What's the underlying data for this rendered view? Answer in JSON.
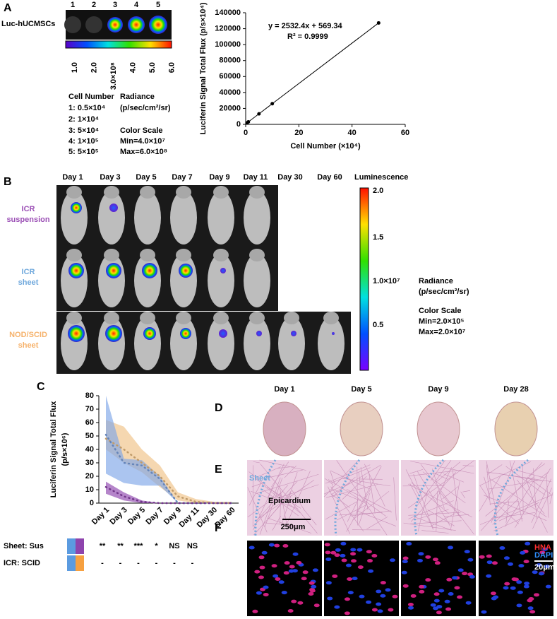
{
  "panel_labels": [
    "A",
    "B",
    "C",
    "D",
    "E",
    "F"
  ],
  "panel_a": {
    "well_numbers": [
      "1",
      "2",
      "3",
      "4",
      "5"
    ],
    "row_label": "Luc-hUCMSCs",
    "colorbar_ticks": [
      "1.0",
      "2.0",
      "3.0×10⁸",
      "4.0",
      "5.0",
      "6.0"
    ],
    "legend_left": [
      "Cell Number",
      "1: 0.5×10⁴",
      "2: 1×10⁴",
      "3: 5×10⁴",
      "4: 1×10⁵",
      "5: 5×10⁵"
    ],
    "legend_right": [
      "Radiance",
      "(p/sec/cm²/sr)",
      "Color Scale",
      "Min=4.0×10⁷",
      "Max=6.0×10⁸"
    ]
  },
  "panel_b": {
    "days": [
      "Day 1",
      "Day 3",
      "Day 5",
      "Day 7",
      "Day 9",
      "Day 11",
      "Day 30",
      "Day 60"
    ],
    "colorbar_title": "Luminescence",
    "groups": [
      {
        "lines": [
          "ICR",
          "suspension"
        ],
        "color": "#9b4fb5"
      },
      {
        "lines": [
          "ICR",
          "sheet"
        ],
        "color": "#6fa8dc"
      },
      {
        "lines": [
          "NOD/SCID",
          "sheet"
        ],
        "color": "#f6b26b"
      }
    ],
    "colorbar_ticks": [
      "2.0",
      "1.5",
      "1.0×10⁷",
      "0.5"
    ],
    "legend": [
      "Radiance",
      "(p/sec/cm²/sr)",
      "Color Scale",
      "Min=2.0×10⁵",
      "Max=2.0×10⁷"
    ]
  },
  "chart_data": [
    {
      "type": "scatter",
      "x": [
        0.5,
        1,
        5,
        10,
        50
      ],
      "values": [
        1800,
        3100,
        13200,
        25900,
        127200
      ],
      "color": "#000000",
      "xlim": [
        0,
        60
      ],
      "xticks": [
        0,
        20,
        40,
        60
      ],
      "ylim": [
        0,
        140000
      ],
      "yticks": [
        0,
        20000,
        40000,
        60000,
        80000,
        100000,
        120000,
        140000
      ],
      "xlabel": "Cell Number (×10⁴)",
      "ylabel": "Luciferin Signal Total Flux (p/s×10⁴)",
      "annotations": [
        "y = 2532.4x + 569.34",
        "R² = 0.9999"
      ]
    },
    {
      "type": "line",
      "categories": [
        "Day 1",
        "Day 3",
        "Day 5",
        "Day 7",
        "Day 9",
        "Day 11",
        "Day 30",
        "Day 60"
      ],
      "ylabel": "Luciferin Signal Total Flux",
      "ylabel_unit": "(p/s×10⁶)",
      "ylim": [
        0,
        80
      ],
      "yticks": [
        0,
        10,
        20,
        30,
        40,
        50,
        60,
        70,
        80
      ],
      "series": [
        {
          "color": "#f0c285",
          "values": [
            48,
            40,
            30,
            20,
            5,
            1,
            0,
            0
          ],
          "upper": [
            62,
            57,
            40,
            28,
            8,
            3,
            1,
            1
          ],
          "lower": [
            40,
            30,
            23,
            12,
            2,
            0,
            0,
            0
          ]
        },
        {
          "color": "#7ea6e8",
          "values": [
            51,
            30,
            28,
            18,
            0,
            0,
            0,
            0
          ],
          "upper": [
            80,
            33,
            32,
            20,
            0,
            0,
            0,
            0
          ],
          "lower": [
            22,
            15,
            13,
            13,
            0,
            0,
            0,
            0
          ]
        },
        {
          "color": "#8e44ad",
          "values": [
            12,
            5,
            1,
            0,
            0,
            0,
            0,
            0
          ],
          "upper": [
            16,
            8,
            2,
            0,
            0,
            0,
            0,
            0
          ],
          "lower": [
            7,
            2,
            0,
            0,
            0,
            0,
            0,
            0
          ]
        }
      ]
    }
  ],
  "significance": [
    {
      "label": "Sheet: Sus",
      "values": [
        "**",
        "**",
        "***",
        "*",
        "NS",
        "NS"
      ]
    },
    {
      "label": "ICR: SCID",
      "values": [
        "-",
        "-",
        "-",
        "-",
        "-",
        "-"
      ]
    }
  ],
  "panel_d": {
    "days": [
      "Day 1",
      "Day 5",
      "Day 9",
      "Day 28"
    ]
  },
  "panel_e": {
    "sheet": "Sheet",
    "epicardium": "Epicardium",
    "scale_bar": "250μm"
  },
  "panel_f": {
    "hna": "HNA",
    "dapi": "DAPI",
    "scale_bar": "20μm"
  }
}
